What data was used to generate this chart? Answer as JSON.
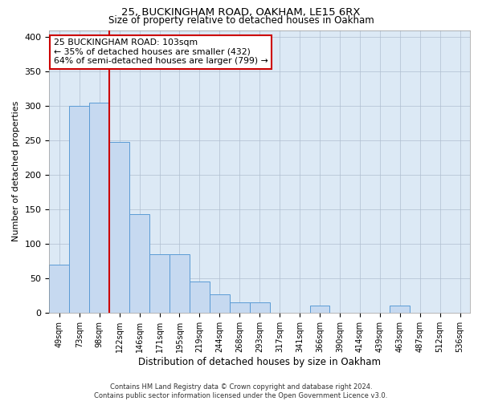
{
  "title1": "25, BUCKINGHAM ROAD, OAKHAM, LE15 6RX",
  "title2": "Size of property relative to detached houses in Oakham",
  "xlabel": "Distribution of detached houses by size in Oakham",
  "ylabel": "Number of detached properties",
  "categories": [
    "49sqm",
    "73sqm",
    "98sqm",
    "122sqm",
    "146sqm",
    "171sqm",
    "195sqm",
    "219sqm",
    "244sqm",
    "268sqm",
    "293sqm",
    "317sqm",
    "341sqm",
    "366sqm",
    "390sqm",
    "414sqm",
    "439sqm",
    "463sqm",
    "487sqm",
    "512sqm",
    "536sqm"
  ],
  "values": [
    70,
    300,
    305,
    248,
    143,
    85,
    85,
    45,
    27,
    15,
    15,
    0,
    0,
    10,
    0,
    0,
    0,
    10,
    0,
    0,
    0
  ],
  "bar_color": "#c6d9f0",
  "bar_edge_color": "#5b9bd5",
  "vline_x": 2.5,
  "vline_color": "#cc0000",
  "annotation_text": "25 BUCKINGHAM ROAD: 103sqm\n← 35% of detached houses are smaller (432)\n64% of semi-detached houses are larger (799) →",
  "annotation_box_color": "#ffffff",
  "annotation_box_edge": "#cc0000",
  "ylim": [
    0,
    410
  ],
  "yticks": [
    0,
    50,
    100,
    150,
    200,
    250,
    300,
    350,
    400
  ],
  "bg_color": "#dce9f5",
  "footer1": "Contains HM Land Registry data © Crown copyright and database right 2024.",
  "footer2": "Contains public sector information licensed under the Open Government Licence v3.0."
}
